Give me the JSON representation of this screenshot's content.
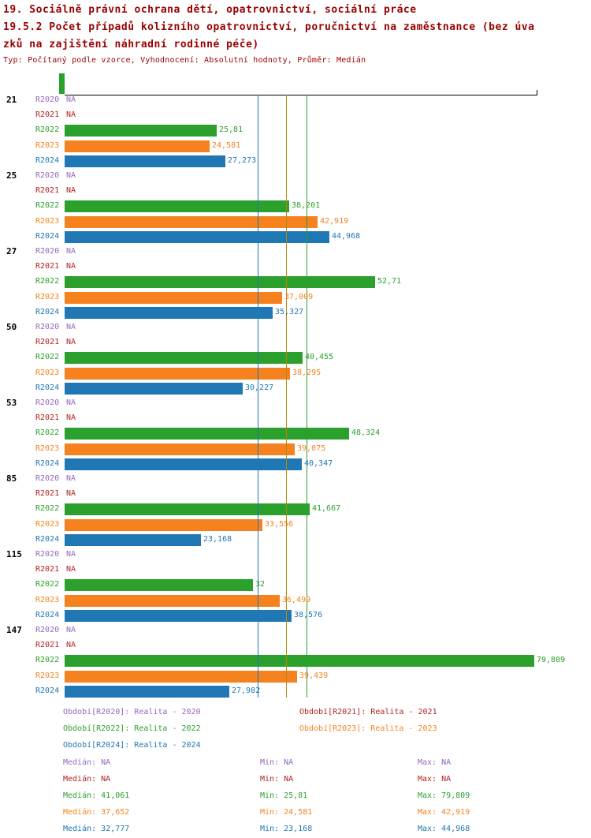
{
  "title": {
    "line1": "19. Sociálně právní ochrana dětí, opatrovnictví, sociální práce",
    "line2": "19.5.2 Počet případů kolizního opatrovnictví, poručnictví na zaměstnance (bez úva",
    "line3": "zků na zajištění náhradní rodinné péče)",
    "subtitle": "Typ: Počítaný podle vzorce, Vyhodnocení: Absolutní hodnoty, Průměr: Medián"
  },
  "colors": {
    "title": "#990000",
    "axis": "#000000",
    "group_label": "#000000",
    "axis_marker": "#2ca02c"
  },
  "stats_labels": {
    "median": "Medián",
    "min": "Min",
    "max": "Max"
  },
  "chart_data": {
    "type": "bar",
    "orientation": "horizontal",
    "title": "19.5.2 Počet případů kolizního opatrovnictví, poručnictví na zaměstnance (bez úvazků na zajištění náhradní rodinné péče)",
    "categories": [
      "21",
      "25",
      "27",
      "50",
      "53",
      "85",
      "115",
      "147"
    ],
    "xlim": [
      0,
      80
    ],
    "grid": false,
    "legend_position": "bottom",
    "series": [
      {
        "name": "R2020",
        "legend": "Období[R2020]: Realita - 2020",
        "color": "#9467bd",
        "values": [
          null,
          null,
          null,
          null,
          null,
          null,
          null,
          null
        ],
        "labels": [
          "NA",
          "NA",
          "NA",
          "NA",
          "NA",
          "NA",
          "NA",
          "NA"
        ],
        "median": null,
        "median_label": "NA",
        "min_label": "NA",
        "max_label": "NA",
        "median_color": null
      },
      {
        "name": "R2021",
        "legend": "Období[R2021]: Realita - 2021",
        "color": "#b22222",
        "values": [
          null,
          null,
          null,
          null,
          null,
          null,
          null,
          null
        ],
        "labels": [
          "NA",
          "NA",
          "NA",
          "NA",
          "NA",
          "NA",
          "NA",
          "NA"
        ],
        "median": null,
        "median_label": "NA",
        "min_label": "NA",
        "max_label": "NA",
        "median_color": null
      },
      {
        "name": "R2022",
        "legend": "Období[R2022]: Realita - 2022",
        "color": "#2ca02c",
        "values": [
          25.81,
          38.201,
          52.71,
          40.455,
          48.324,
          41.667,
          32,
          79.809
        ],
        "labels": [
          "25,81",
          "38,201",
          "52,71",
          "40,455",
          "48,324",
          "41,667",
          "32",
          "79,809"
        ],
        "median": 41.061,
        "median_label": "41,061",
        "min_label": "25,81",
        "max_label": "79,809",
        "median_color": "#2ca02c"
      },
      {
        "name": "R2023",
        "legend": "Období[R2023]: Realita - 2023",
        "color": "#f5821f",
        "values": [
          24.581,
          42.919,
          37.009,
          38.295,
          39.075,
          33.556,
          36.499,
          39.439
        ],
        "labels": [
          "24,581",
          "42,919",
          "37,009",
          "38,295",
          "39,075",
          "33,556",
          "36,499",
          "39,439"
        ],
        "median": 37.652,
        "median_label": "37,652",
        "min_label": "24,581",
        "max_label": "42,919",
        "median_color": "#b8860b"
      },
      {
        "name": "R2024",
        "legend": "Období[R2024]: Realita - 2024",
        "color": "#1f77b4",
        "values": [
          27.273,
          44.968,
          35.327,
          30.227,
          40.347,
          23.168,
          38.576,
          27.982
        ],
        "labels": [
          "27,273",
          "44,968",
          "35,327",
          "30,227",
          "40,347",
          "23,168",
          "38,576",
          "27,982"
        ],
        "median": 32.777,
        "median_label": "32,777",
        "min_label": "23,168",
        "max_label": "44,968",
        "median_color": "#1f77b4"
      }
    ]
  }
}
